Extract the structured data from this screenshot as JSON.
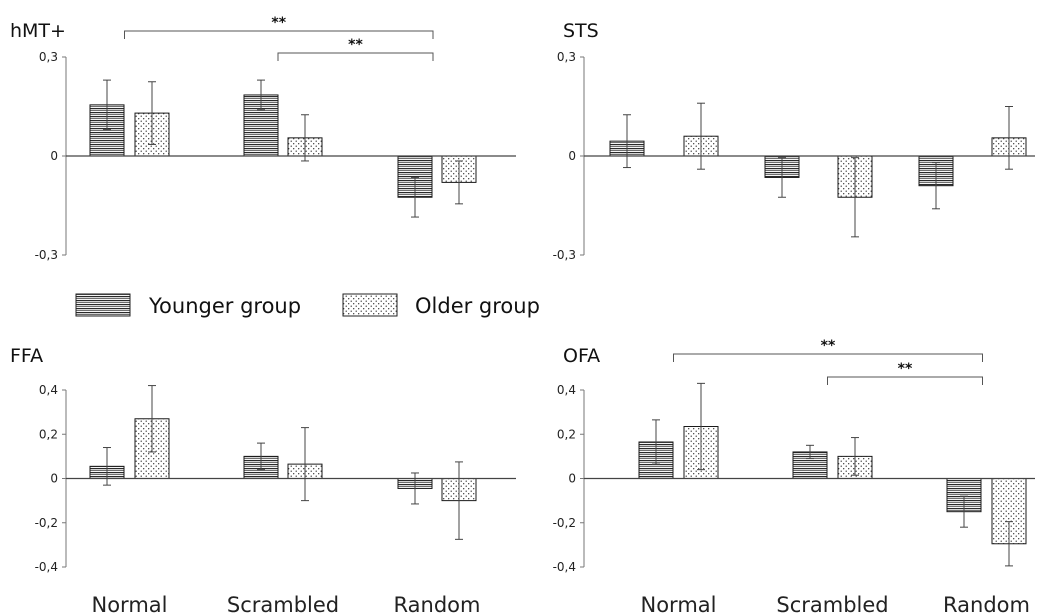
{
  "legend": {
    "younger_label": "Younger group",
    "older_label": "Older group"
  },
  "chart_data": [
    {
      "type": "bar",
      "title": "hMT+",
      "categories": [
        "Normal",
        "Scrambled",
        "Random"
      ],
      "ylim": [
        -0.3,
        0.3
      ],
      "yticks": [
        0.3,
        0,
        -0.3
      ],
      "ytick_labels": [
        "0,3",
        "0",
        "-0,3"
      ],
      "show_category_labels": false,
      "series": [
        {
          "name": "Younger group",
          "values": [
            0.155,
            0.185,
            -0.125
          ],
          "errors": [
            0.075,
            0.045,
            0.06
          ]
        },
        {
          "name": "Older group",
          "values": [
            0.13,
            0.055,
            -0.08
          ],
          "errors": [
            0.095,
            0.07,
            0.065
          ]
        }
      ],
      "significance": [
        {
          "from_category": 0,
          "to_category": 2,
          "label": "**"
        },
        {
          "from_category": 1,
          "to_category": 2,
          "label": "**"
        }
      ]
    },
    {
      "type": "bar",
      "title": "STS",
      "categories": [
        "Normal",
        "Scrambled",
        "Random"
      ],
      "ylim": [
        -0.3,
        0.3
      ],
      "yticks": [
        0.3,
        0,
        -0.3
      ],
      "ytick_labels": [
        "0,3",
        "0",
        "-0,3"
      ],
      "show_category_labels": false,
      "series": [
        {
          "name": "Younger group",
          "values": [
            0.045,
            -0.065,
            -0.09
          ],
          "errors": [
            0.08,
            0.06,
            0.07
          ]
        },
        {
          "name": "Older group",
          "values": [
            0.06,
            -0.125,
            0.055
          ],
          "errors": [
            0.1,
            0.12,
            0.095
          ]
        }
      ],
      "significance": []
    },
    {
      "type": "bar",
      "title": "FFA",
      "categories": [
        "Normal",
        "Scrambled",
        "Random"
      ],
      "ylim": [
        -0.4,
        0.4
      ],
      "yticks": [
        0.4,
        0.2,
        0,
        -0.2,
        -0.4
      ],
      "ytick_labels": [
        "0,4",
        "0,2",
        "0",
        "-0,2",
        "-0,4"
      ],
      "show_category_labels": true,
      "series": [
        {
          "name": "Younger group",
          "values": [
            0.055,
            0.1,
            -0.045
          ],
          "errors": [
            0.085,
            0.06,
            0.07
          ]
        },
        {
          "name": "Older group",
          "values": [
            0.27,
            0.065,
            -0.1
          ],
          "errors": [
            0.15,
            0.165,
            0.175
          ]
        }
      ],
      "significance": []
    },
    {
      "type": "bar",
      "title": "OFA",
      "categories": [
        "Normal",
        "Scrambled",
        "Random"
      ],
      "ylim": [
        -0.4,
        0.4
      ],
      "yticks": [
        0.4,
        0.2,
        0,
        -0.2,
        -0.4
      ],
      "ytick_labels": [
        "0,4",
        "0,2",
        "0",
        "-0,2",
        "-0,4"
      ],
      "show_category_labels": true,
      "series": [
        {
          "name": "Younger group",
          "values": [
            0.165,
            0.12,
            -0.15
          ],
          "errors": [
            0.1,
            0.03,
            0.07
          ]
        },
        {
          "name": "Older group",
          "values": [
            0.235,
            0.1,
            -0.295
          ],
          "errors": [
            0.195,
            0.085,
            0.1
          ]
        }
      ],
      "significance": [
        {
          "from_category": 0,
          "to_category": 2,
          "label": "**"
        },
        {
          "from_category": 1,
          "to_category": 2,
          "label": "**"
        }
      ]
    }
  ]
}
